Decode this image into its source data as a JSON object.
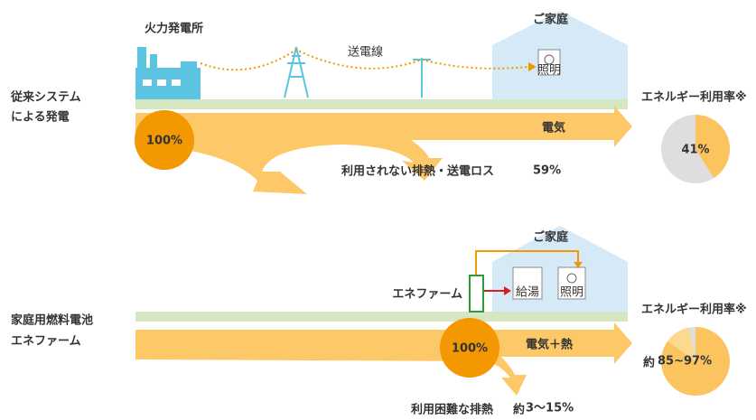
{
  "top": {
    "plant": "火力発電所",
    "line": "送電線",
    "home": "ご家庭",
    "lamp": "照明",
    "system": [
      "従来システム",
      "による発電"
    ],
    "input": "100%",
    "output": "電気",
    "loss": {
      "text": "利用されない排熱・送電ロス",
      "value": "59%"
    },
    "rate": {
      "title": "エネルギー利用率※",
      "label": "41%",
      "value": 41
    }
  },
  "bottom": {
    "home": "ご家庭",
    "water": "給湯",
    "lamp": "照明",
    "device": "エネファーム",
    "system": [
      "家庭用燃料電池",
      "エネファーム"
    ],
    "input": "100%",
    "output": "電気＋熱",
    "loss": {
      "text": "利用困難な排熱",
      "prefix": "約",
      "value": "3～15%"
    },
    "rate": {
      "title": "エネルギー利用率※",
      "prefix": "約",
      "label": "85~97%",
      "range": [
        85,
        97
      ]
    }
  }
}
